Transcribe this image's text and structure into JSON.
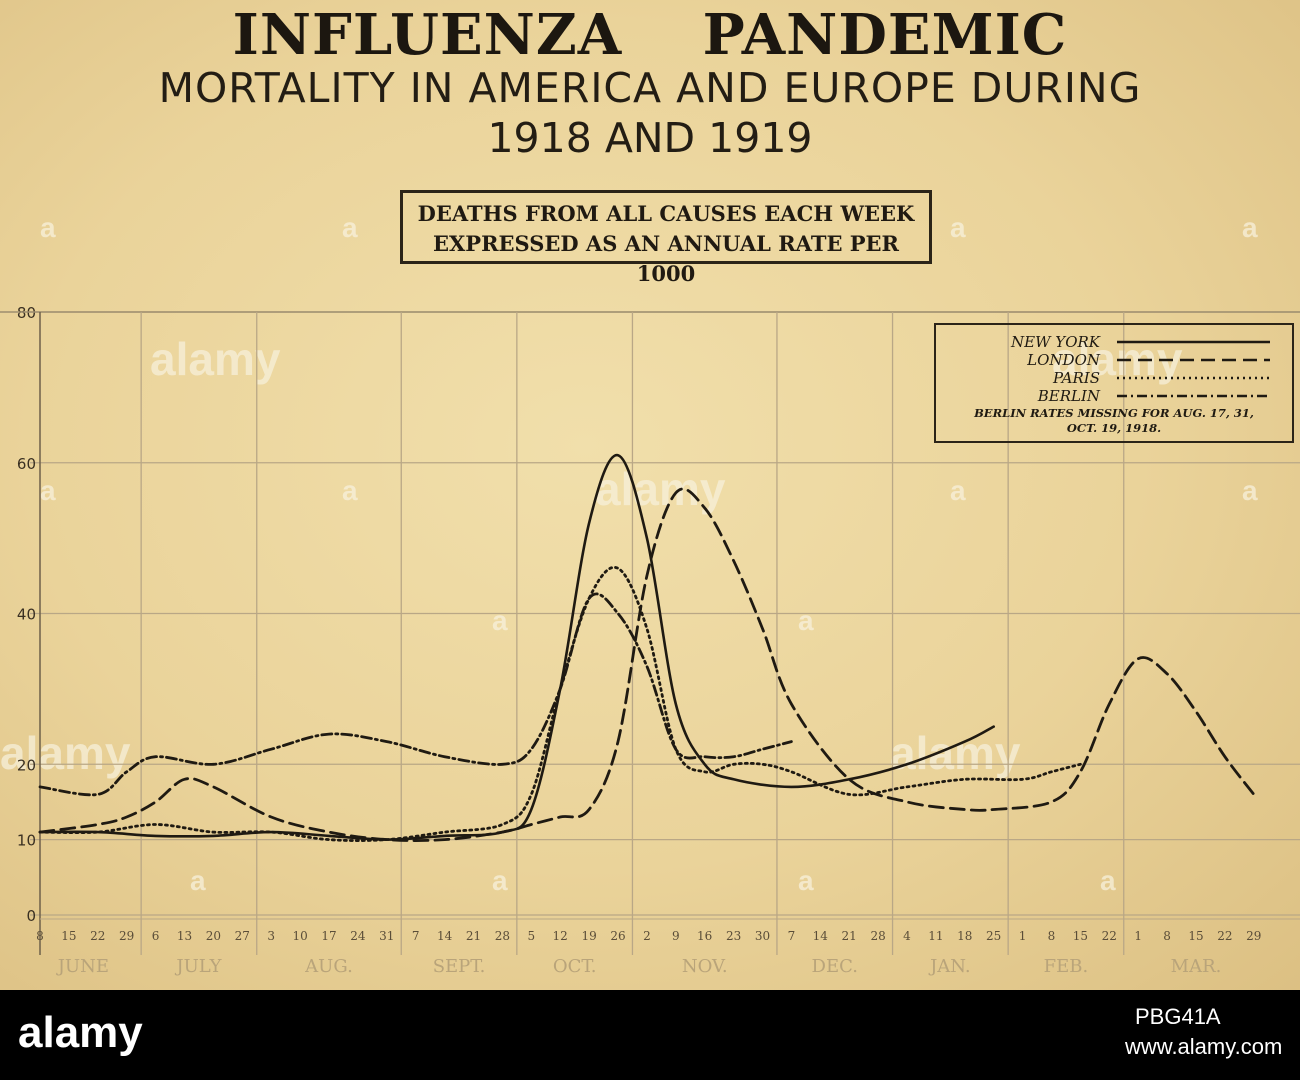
{
  "title": "INFLUENZA    PANDEMIC",
  "subtitle": "MORTALITY IN AMERICA AND EUROPE DURING",
  "years": "1918 AND 1919",
  "note_lines": [
    "DEATHS FROM ALL CAUSES EACH WEEK",
    "EXPRESSED AS AN ANNUAL RATE PER 1000"
  ],
  "watermark": {
    "small": "a",
    "large": "alamy"
  },
  "footer": {
    "logo": "alamy",
    "image_id": "PBG41A",
    "url": "www.alamy.com"
  },
  "colors": {
    "paper": "#ecd7a0",
    "ink": "#1f1a12",
    "grid": "#b9a786"
  },
  "chart_data": {
    "type": "line",
    "title": "",
    "xlabel": "",
    "ylabel": "",
    "ylim": [
      0,
      80
    ],
    "yticks": [
      0,
      10,
      20,
      40,
      60,
      80
    ],
    "ytick_labels": [
      "0",
      "10",
      "20",
      "40",
      "60",
      "80"
    ],
    "x_tick_labels": [
      "8",
      "15",
      "22",
      "29",
      "6",
      "13",
      "20",
      "27",
      "3",
      "10",
      "17",
      "24",
      "31",
      "7",
      "14",
      "21",
      "28",
      "5",
      "12",
      "19",
      "26",
      "2",
      "9",
      "16",
      "23",
      "30",
      "7",
      "14",
      "21",
      "28",
      "4",
      "11",
      "18",
      "25",
      "1",
      "8",
      "15",
      "22",
      "1",
      "8",
      "15",
      "22",
      "29"
    ],
    "months": [
      {
        "label": "JUNE",
        "start": 0,
        "end": 3
      },
      {
        "label": "JULY",
        "start": 4,
        "end": 7
      },
      {
        "label": "AUG.",
        "start": 8,
        "end": 12
      },
      {
        "label": "SEPT.",
        "start": 13,
        "end": 16
      },
      {
        "label": "OCT.",
        "start": 17,
        "end": 20
      },
      {
        "label": "NOV.",
        "start": 21,
        "end": 25
      },
      {
        "label": "DEC.",
        "start": 26,
        "end": 29
      },
      {
        "label": "JAN.",
        "start": 30,
        "end": 33
      },
      {
        "label": "FEB.",
        "start": 34,
        "end": 37
      },
      {
        "label": "MAR.",
        "start": 38,
        "end": 42
      }
    ],
    "legend_note": [
      "BERLIN RATES MISSING FOR AUG. 17, 31,",
      "OCT. 19, 1918."
    ],
    "legend_position": "top-right",
    "grid": true,
    "series": [
      {
        "name": "NEW YORK",
        "style": "solid",
        "x": [
          0,
          2,
          4,
          6,
          8,
          10,
          12,
          14,
          16,
          17,
          18,
          19,
          20,
          21,
          22,
          23,
          24,
          26,
          28,
          30,
          32,
          33
        ],
        "y": [
          11,
          11,
          10.5,
          10.5,
          11,
          10.5,
          10,
          10.5,
          11,
          14,
          30,
          52,
          61,
          50,
          28,
          20,
          18,
          17,
          18,
          20,
          23,
          25
        ]
      },
      {
        "name": "LONDON",
        "style": "dashed",
        "x": [
          0,
          2,
          3,
          4,
          5,
          6,
          8,
          10,
          12,
          14,
          16,
          17,
          18,
          19,
          20,
          21,
          22,
          23,
          24,
          25,
          26,
          28,
          30,
          32,
          33,
          35,
          36,
          37,
          38,
          39,
          40,
          41,
          42
        ],
        "y": [
          11,
          12,
          13,
          15,
          18,
          17,
          13,
          11,
          10,
          10,
          11,
          12,
          13,
          14,
          23,
          45,
          56,
          54,
          47,
          38,
          28,
          18,
          15,
          14,
          14,
          15,
          19,
          28,
          34,
          32,
          27,
          21,
          16
        ]
      },
      {
        "name": "PARIS",
        "style": "dotted",
        "x": [
          0,
          2,
          4,
          6,
          8,
          10,
          12,
          14,
          16,
          17,
          18,
          19,
          20,
          21,
          22,
          23,
          24,
          25,
          26,
          28,
          30,
          32,
          34,
          35,
          36
        ],
        "y": [
          11,
          11,
          12,
          11,
          11,
          10,
          10,
          11,
          12,
          16,
          30,
          42,
          46,
          38,
          22,
          19,
          20,
          20,
          19,
          16,
          17,
          18,
          18,
          19,
          20
        ]
      },
      {
        "name": "BERLIN",
        "style": "dash-dot",
        "x": [
          0,
          2,
          3,
          4,
          6,
          8,
          10,
          12,
          14,
          16,
          17,
          18,
          19,
          20,
          21,
          22,
          23,
          24,
          25,
          26
        ],
        "y": [
          17,
          16,
          19,
          21,
          20,
          22,
          24,
          23,
          21,
          20,
          22,
          30,
          42,
          40,
          33,
          22,
          21,
          21,
          22,
          23
        ]
      }
    ]
  }
}
